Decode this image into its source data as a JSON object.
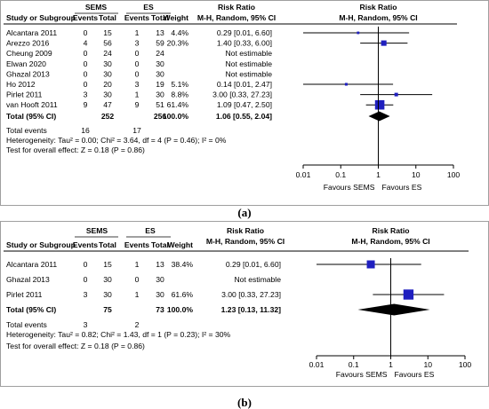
{
  "chart_data": [
    {
      "type": "forest",
      "panel_label": "(a)",
      "headers": {
        "study": "Study or Subgroup",
        "group1": "SEMS",
        "group2": "ES",
        "events": "Events",
        "total": "Total",
        "weight": "Weight",
        "effect": "Risk Ratio",
        "method": "M-H, Random, 95% CI"
      },
      "studies": [
        {
          "name": "Alcantara 2011",
          "e1": "0",
          "t1": "15",
          "e2": "1",
          "t2": "13",
          "weight": "4.4%",
          "ci_text": "0.29 [0.01, 6.60]",
          "rr": 0.29,
          "lo": 0.01,
          "hi": 6.6,
          "w": 4.4
        },
        {
          "name": "Arezzo 2016",
          "e1": "4",
          "t1": "56",
          "e2": "3",
          "t2": "59",
          "weight": "20.3%",
          "ci_text": "1.40 [0.33, 6.00]",
          "rr": 1.4,
          "lo": 0.33,
          "hi": 6.0,
          "w": 20.3
        },
        {
          "name": "Cheung 2009",
          "e1": "0",
          "t1": "24",
          "e2": "0",
          "t2": "24",
          "weight": "",
          "ci_text": "Not estimable",
          "rr": null,
          "lo": null,
          "hi": null,
          "w": 0
        },
        {
          "name": "Elwan 2020",
          "e1": "0",
          "t1": "30",
          "e2": "0",
          "t2": "30",
          "weight": "",
          "ci_text": "Not estimable",
          "rr": null,
          "lo": null,
          "hi": null,
          "w": 0
        },
        {
          "name": "Ghazal 2013",
          "e1": "0",
          "t1": "30",
          "e2": "0",
          "t2": "30",
          "weight": "",
          "ci_text": "Not estimable",
          "rr": null,
          "lo": null,
          "hi": null,
          "w": 0
        },
        {
          "name": "Ho 2012",
          "e1": "0",
          "t1": "20",
          "e2": "3",
          "t2": "19",
          "weight": "5.1%",
          "ci_text": "0.14 [0.01, 2.47]",
          "rr": 0.14,
          "lo": 0.01,
          "hi": 2.47,
          "w": 5.1
        },
        {
          "name": "Pirlet 2011",
          "e1": "3",
          "t1": "30",
          "e2": "1",
          "t2": "30",
          "weight": "8.8%",
          "ci_text": "3.00 [0.33, 27.23]",
          "rr": 3.0,
          "lo": 0.33,
          "hi": 27.23,
          "w": 8.8
        },
        {
          "name": "van Hooft 2011",
          "e1": "9",
          "t1": "47",
          "e2": "9",
          "t2": "51",
          "weight": "61.4%",
          "ci_text": "1.09 [0.47, 2.50]",
          "rr": 1.09,
          "lo": 0.47,
          "hi": 2.5,
          "w": 61.4
        }
      ],
      "total": {
        "label": "Total (95% CI)",
        "t1": "252",
        "t2": "256",
        "weight": "100.0%",
        "ci_text": "1.06 [0.55, 2.04]",
        "rr": 1.06,
        "lo": 0.55,
        "hi": 2.04
      },
      "total_events": {
        "label": "Total events",
        "e1": "16",
        "e2": "17"
      },
      "heterogeneity": "Heterogeneity: Tau² = 0.00; Chi² = 3.64, df = 4 (P = 0.46); I² = 0%",
      "overall_effect": "Test for overall effect: Z = 0.18 (P = 0.86)",
      "axis": {
        "scale": "log",
        "ticks": [
          0.01,
          0.1,
          1,
          10,
          100
        ],
        "tick_labels": [
          "0.01",
          "0.1",
          "1",
          "10",
          "100"
        ],
        "favours_left": "Favours SEMS",
        "favours_right": "Favours ES"
      }
    },
    {
      "type": "forest",
      "panel_label": "(b)",
      "headers": {
        "study": "Study or Subgroup",
        "group1": "SEMS",
        "group2": "ES",
        "events": "Events",
        "total": "Total",
        "weight": "Weight",
        "effect": "Risk Ratio",
        "method": "M-H, Random, 95% CI"
      },
      "studies": [
        {
          "name": "Alcantara 2011",
          "e1": "0",
          "t1": "15",
          "e2": "1",
          "t2": "13",
          "weight": "38.4%",
          "ci_text": "0.29 [0.01, 6.60]",
          "rr": 0.29,
          "lo": 0.01,
          "hi": 6.6,
          "w": 38.4
        },
        {
          "name": "Ghazal 2013",
          "e1": "0",
          "t1": "30",
          "e2": "0",
          "t2": "30",
          "weight": "",
          "ci_text": "Not estimable",
          "rr": null,
          "lo": null,
          "hi": null,
          "w": 0
        },
        {
          "name": "Pirlet 2011",
          "e1": "3",
          "t1": "30",
          "e2": "1",
          "t2": "30",
          "weight": "61.6%",
          "ci_text": "3.00 [0.33, 27.23]",
          "rr": 3.0,
          "lo": 0.33,
          "hi": 27.23,
          "w": 61.6
        }
      ],
      "total": {
        "label": "Total (95% CI)",
        "t1": "75",
        "t2": "73",
        "weight": "100.0%",
        "ci_text": "1.23 [0.13, 11.32]",
        "rr": 1.23,
        "lo": 0.13,
        "hi": 11.32
      },
      "total_events": {
        "label": "Total events",
        "e1": "3",
        "e2": "2"
      },
      "heterogeneity": "Heterogeneity: Tau² = 0.82; Chi² = 1.43, df = 1 (P = 0.23); I² = 30%",
      "overall_effect": "Test for overall effect: Z = 0.18 (P = 0.86)",
      "axis": {
        "scale": "log",
        "ticks": [
          0.01,
          0.1,
          1,
          10,
          100
        ],
        "tick_labels": [
          "0.01",
          "0.1",
          "1",
          "10",
          "100"
        ],
        "favours_left": "Favours SEMS",
        "favours_right": "Favours ES"
      }
    }
  ],
  "colors": {
    "marker": "#1f1fbf",
    "text": "#000000",
    "diamond": "#000000",
    "rule": "#000000",
    "frame": "#888888"
  }
}
